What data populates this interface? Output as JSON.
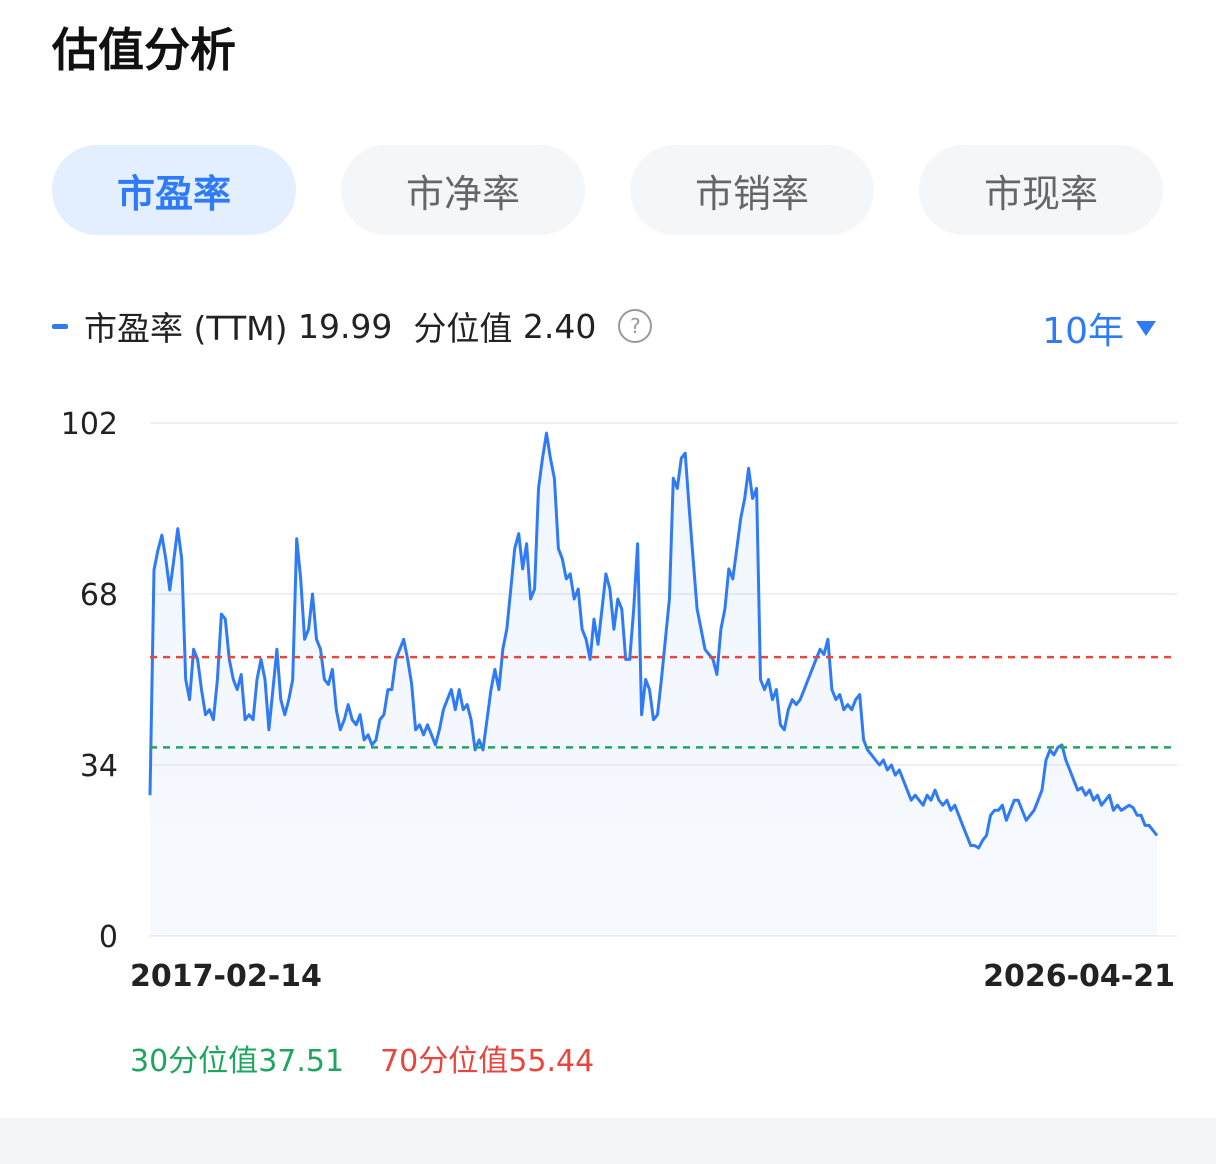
{
  "header": {
    "title": "估值分析"
  },
  "tabs": [
    {
      "label": "市盈率",
      "active": true
    },
    {
      "label": "市净率",
      "active": false
    },
    {
      "label": "市销率",
      "active": false
    },
    {
      "label": "市现率",
      "active": false
    }
  ],
  "range_selector": {
    "label": "10年"
  },
  "chart_data": {
    "type": "line",
    "series": [
      {
        "name": "市盈率 (TTM)",
        "color": "#2f7bf5",
        "values": [
          28,
          72.8,
          76.7,
          79.7,
          74.8,
          68.8,
          74.8,
          81,
          75,
          51,
          47,
          57,
          55,
          49,
          44,
          45,
          43,
          51,
          64,
          63,
          55,
          51,
          49,
          52,
          43,
          44,
          43,
          51,
          55,
          51,
          41,
          49,
          57,
          47,
          44,
          47,
          51,
          79,
          71,
          59,
          61,
          68,
          59,
          57,
          51,
          50,
          53,
          45,
          41,
          43,
          46,
          43,
          42,
          44,
          39,
          40,
          38,
          39,
          43,
          44,
          49,
          49,
          55,
          57,
          59,
          55,
          50,
          41,
          42,
          40,
          42,
          40,
          38,
          41,
          45,
          47,
          49,
          45,
          49,
          45,
          46,
          43,
          37,
          39,
          37,
          43,
          49,
          53,
          49,
          57,
          61,
          69,
          77,
          80,
          73,
          78,
          67,
          69,
          89,
          95,
          100,
          95,
          91,
          77,
          75,
          71,
          72,
          67,
          69,
          61,
          59,
          55,
          63,
          58,
          65,
          72,
          69,
          61,
          67,
          65,
          55,
          55,
          65,
          78,
          44,
          51,
          49,
          43,
          44,
          51,
          59,
          67,
          91,
          89,
          95,
          96,
          85,
          75,
          65,
          61,
          57,
          56,
          55,
          52,
          61,
          65,
          73,
          71,
          77,
          83,
          87,
          93,
          87,
          89,
          51,
          49,
          51,
          47,
          49,
          42,
          41,
          45,
          47,
          46,
          47,
          49,
          51,
          53,
          55,
          57,
          56,
          59,
          49,
          47,
          48,
          45,
          46,
          45,
          47,
          48,
          39,
          37,
          36,
          35,
          34,
          35,
          33,
          34,
          32,
          33,
          31,
          29,
          27,
          28,
          27,
          26,
          28,
          27,
          29,
          27,
          26,
          27,
          25,
          26,
          24,
          22,
          20,
          18,
          18,
          17.5,
          19,
          20,
          24,
          25,
          25,
          26,
          23,
          25,
          27,
          27,
          25,
          23,
          24,
          25,
          27,
          29,
          35,
          37,
          36,
          37.5,
          38,
          35,
          33,
          31,
          29,
          29.5,
          28,
          29,
          27,
          28,
          26,
          27,
          28,
          25,
          26,
          25,
          25.5,
          26,
          25.5,
          24,
          24,
          22,
          22,
          21,
          19.99
        ]
      }
    ],
    "current_value": 19.99,
    "percentile_label": "分位值",
    "percentile": "2.40",
    "xtick_labels": [
      "2017-02-14",
      "2026-04-21"
    ],
    "ylim": [
      0,
      102
    ],
    "yticks": [
      0,
      34,
      68,
      102
    ],
    "grid": true,
    "reference_lines": [
      {
        "name": "30分位值",
        "value": 37.51,
        "color": "#1fa55e"
      },
      {
        "name": "70分位值",
        "value": 55.44,
        "color": "#e8453c"
      }
    ]
  }
}
